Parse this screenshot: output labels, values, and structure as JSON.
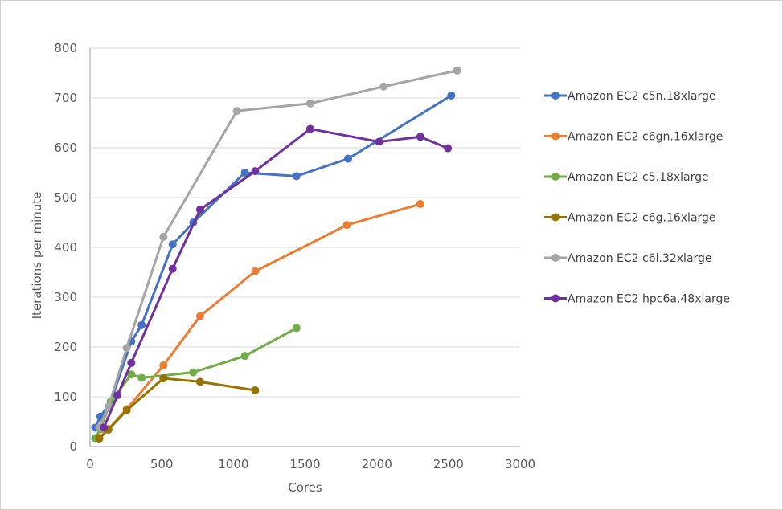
{
  "chart_data": {
    "type": "line",
    "title": "",
    "xlabel": "Cores",
    "ylabel": "Iterations per minute",
    "xlim": [
      0,
      3000
    ],
    "ylim": [
      0,
      800
    ],
    "xticks": [
      0,
      500,
      1000,
      1500,
      2000,
      2500,
      3000
    ],
    "yticks": [
      0,
      100,
      200,
      300,
      400,
      500,
      600,
      700,
      800
    ],
    "grid": "horizontal",
    "legend": "right",
    "series": [
      {
        "name": "Amazon EC2 c5n.18xlarge",
        "color": "#4472C4",
        "x": [
          36,
          72,
          144,
          288,
          360,
          576,
          720,
          1080,
          1440,
          1800,
          2520
        ],
        "y": [
          38,
          60,
          90,
          211,
          244,
          406,
          450,
          550,
          543,
          578,
          705
        ]
      },
      {
        "name": "Amazon EC2 c6gn.16xlarge",
        "color": "#ED7D31",
        "x": [
          64,
          128,
          256,
          512,
          768,
          1152,
          1792,
          2304
        ],
        "y": [
          18,
          35,
          75,
          163,
          262,
          352,
          445,
          487
        ]
      },
      {
        "name": "Amazon EC2 c5.18xlarge",
        "color": "#70AD47",
        "x": [
          36,
          72,
          144,
          288,
          360,
          720,
          1080,
          1440
        ],
        "y": [
          17,
          35,
          90,
          145,
          138,
          149,
          182,
          238
        ]
      },
      {
        "name": "Amazon EC2 c6g.16xlarge",
        "color": "#997300",
        "x": [
          64,
          128,
          256,
          512,
          768,
          1152
        ],
        "y": [
          16,
          34,
          73,
          137,
          130,
          113
        ]
      },
      {
        "name": "Amazon EC2 c6i.32xlarge",
        "color": "#A5A5A5",
        "x": [
          64,
          128,
          256,
          512,
          1024,
          1536,
          2048,
          2560
        ],
        "y": [
          38,
          80,
          198,
          421,
          674,
          689,
          723,
          755
        ]
      },
      {
        "name": "Amazon EC2 hpc6a.48xlarge",
        "color": "#7030A0",
        "x": [
          96,
          192,
          288,
          576,
          768,
          1152,
          1536,
          2016,
          2304,
          2496
        ],
        "y": [
          38,
          103,
          168,
          357,
          476,
          553,
          638,
          612,
          622,
          599
        ]
      }
    ]
  }
}
